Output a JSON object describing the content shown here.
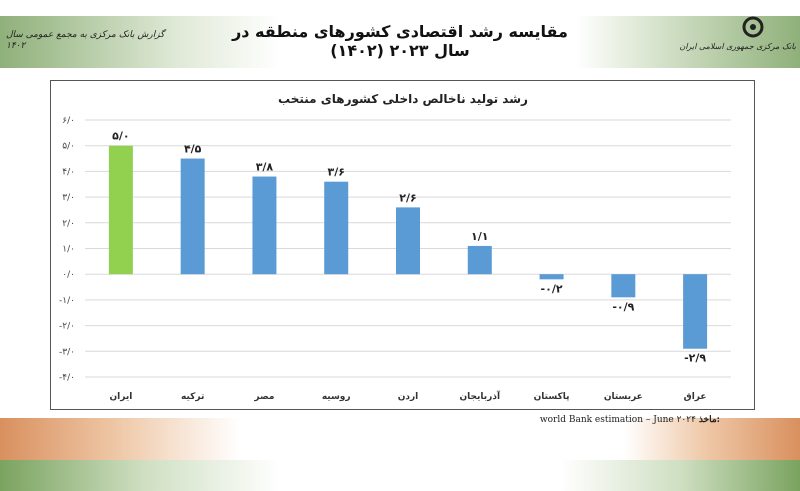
{
  "header": {
    "title": "مقایسه رشد اقتصادی کشورهای منطقه در سال ۲۰۲۳ (۱۴۰۲)",
    "report_label": "گزارش بانک مرکزی به مجمع عمومی سال ۱۴۰۲",
    "bank_name": "بانک مرکزی جمهوری اسلامی ایران",
    "logo_icon": "central-bank-logo"
  },
  "source": {
    "label": "ماخذ:",
    "text": "world Bank estimation – June ۲۰۲۴"
  },
  "chart_data": {
    "type": "bar",
    "title": "رشد تولید ناخالص داخلی کشورهای منتخب",
    "categories": [
      "ایران",
      "ترکیه",
      "مصر",
      "روسیه",
      "اردن",
      "آذربایجان",
      "پاکستان",
      "عربستان",
      "عراق"
    ],
    "values": [
      5.0,
      4.5,
      3.8,
      3.6,
      2.6,
      1.1,
      -0.2,
      -0.9,
      -2.9
    ],
    "data_labels": [
      "۵/۰",
      "۴/۵",
      "۳/۸",
      "۳/۶",
      "۲/۶",
      "۱/۱",
      "-۰/۲",
      "-۰/۹",
      "-۲/۹"
    ],
    "colors": [
      "#92d050",
      "#5b9bd5",
      "#5b9bd5",
      "#5b9bd5",
      "#5b9bd5",
      "#5b9bd5",
      "#5b9bd5",
      "#5b9bd5",
      "#5b9bd5"
    ],
    "ylim": [
      -4,
      6
    ],
    "yticks": [
      6,
      5,
      4,
      3,
      2,
      1,
      0,
      -1,
      -2,
      -3,
      -4
    ],
    "ytick_labels": [
      "۶/۰",
      "۵/۰",
      "۴/۰",
      "۳/۰",
      "۲/۰",
      "۱/۰",
      "۰/۰",
      "-۱/۰",
      "-۲/۰",
      "-۳/۰",
      "-۴/۰"
    ],
    "grid": true,
    "xlabel": "",
    "ylabel": ""
  }
}
